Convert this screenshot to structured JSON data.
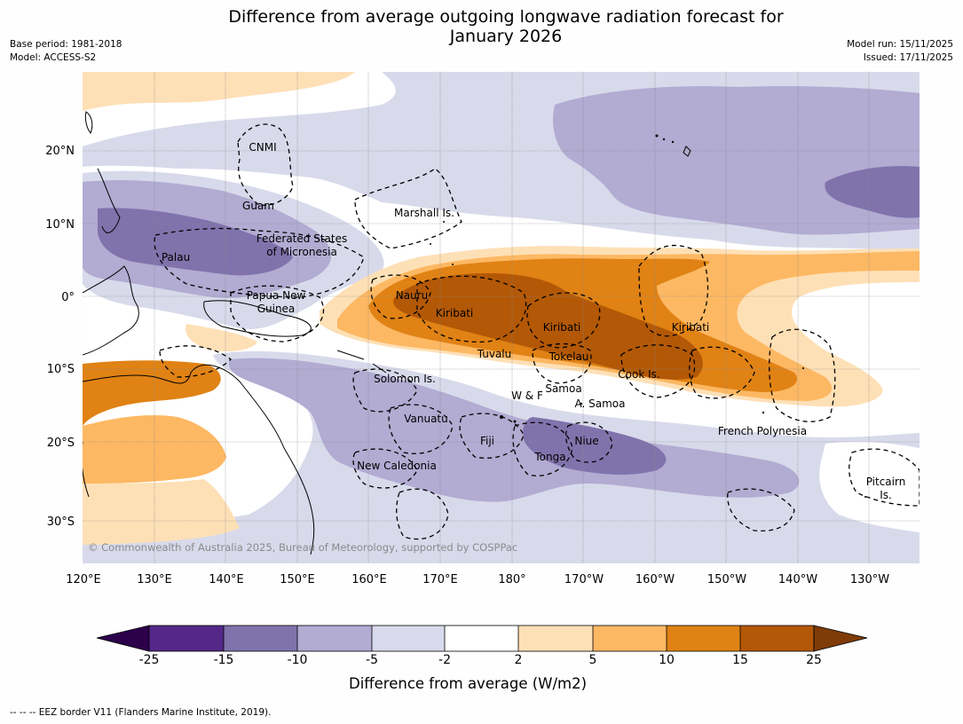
{
  "title": "Difference from average outgoing longwave radiation forecast for January 2026",
  "title_line1": "Difference from average outgoing longwave radiation forecast for",
  "title_line2": "January 2026",
  "meta_left": {
    "base_period": "Base period: 1981-2018",
    "model": "Model: ACCESS-S2"
  },
  "meta_right": {
    "model_run": "Model run: 15/11/2025",
    "issued": "Issued: 17/11/2025"
  },
  "copyright": "© Commonwealth of Australia 2025, Bureau of Meteorology, supported by COSPPac",
  "lon_ticks": [
    "120°E",
    "130°E",
    "140°E",
    "150°E",
    "160°E",
    "170°E",
    "180°",
    "170°W",
    "160°W",
    "150°W",
    "140°W",
    "130°W"
  ],
  "lat_ticks": [
    "20°N",
    "10°N",
    "0°",
    "10°S",
    "20°S",
    "30°S"
  ],
  "region_labels": [
    {
      "id": "cnmi",
      "text": "CNMI"
    },
    {
      "id": "guam",
      "text": "Guam"
    },
    {
      "id": "marshall",
      "text": "Marshall Is."
    },
    {
      "id": "fsm1",
      "text": "Federated States"
    },
    {
      "id": "fsm2",
      "text": "of Micronesia"
    },
    {
      "id": "palau",
      "text": "Palau"
    },
    {
      "id": "png1",
      "text": "Papua New"
    },
    {
      "id": "png2",
      "text": "Guinea"
    },
    {
      "id": "nauru",
      "text": "Nauru"
    },
    {
      "id": "kiribati1",
      "text": "Kiribati"
    },
    {
      "id": "kiribati2",
      "text": "Kiribati"
    },
    {
      "id": "kiribati3",
      "text": "Kiribati"
    },
    {
      "id": "tuvalu",
      "text": "Tuvalu"
    },
    {
      "id": "tokelau",
      "text": "Tokelau"
    },
    {
      "id": "cook",
      "text": "Cook Is."
    },
    {
      "id": "solomon",
      "text": "Solomon Is."
    },
    {
      "id": "wf",
      "text": "W & F"
    },
    {
      "id": "samoa",
      "text": "Samoa"
    },
    {
      "id": "asamoa",
      "text": "A. Samoa"
    },
    {
      "id": "vanuatu",
      "text": "Vanuatu"
    },
    {
      "id": "fiji",
      "text": "Fiji"
    },
    {
      "id": "niue",
      "text": "Niue"
    },
    {
      "id": "tonga",
      "text": "Tonga"
    },
    {
      "id": "frpoly",
      "text": "French Polynesia"
    },
    {
      "id": "newcal",
      "text": "New Caledonia"
    },
    {
      "id": "pitcairn1",
      "text": "Pitcairn"
    },
    {
      "id": "pitcairn2",
      "text": "Is."
    }
  ],
  "colorbar": {
    "title": "Difference from average (W/m2)",
    "labels": [
      "-25",
      "-15",
      "-10",
      "-5",
      "-2",
      "2",
      "5",
      "10",
      "15",
      "25"
    ],
    "colors": [
      "#2d004b",
      "#542788",
      "#8073ac",
      "#b2abd2",
      "#d8daeb",
      "#ffffff",
      "#fee0b6",
      "#fdb863",
      "#e08214",
      "#b35806",
      "#7f3b08"
    ]
  },
  "eez_note": "--  --  -- EEZ border V11 (Flanders Marine Institute, 2019)."
}
